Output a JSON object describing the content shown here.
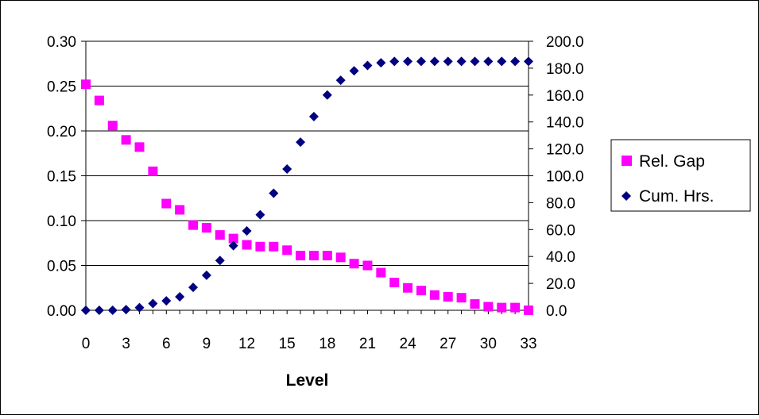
{
  "chart_data": {
    "type": "scatter",
    "xlabel": "Level",
    "x_ticks": [
      0,
      3,
      6,
      9,
      12,
      15,
      18,
      21,
      24,
      27,
      30,
      33
    ],
    "xlim": [
      0,
      33
    ],
    "y_left": {
      "lim": [
        0,
        0.3
      ],
      "ticks": [
        "0.00",
        "0.05",
        "0.10",
        "0.15",
        "0.20",
        "0.25",
        "0.30"
      ]
    },
    "y_right": {
      "lim": [
        0,
        200
      ],
      "ticks": [
        "0.0",
        "20.0",
        "40.0",
        "60.0",
        "80.0",
        "100.0",
        "120.0",
        "140.0",
        "160.0",
        "180.0",
        "200.0"
      ]
    },
    "grid": "horizontal",
    "legend_position": "right",
    "series": [
      {
        "name": "Rel. Gap",
        "axis": "left",
        "marker": "square",
        "color": "#ff00ff",
        "x": [
          0,
          1,
          2,
          3,
          4,
          5,
          6,
          7,
          8,
          9,
          10,
          11,
          12,
          13,
          14,
          15,
          16,
          17,
          18,
          19,
          20,
          21,
          22,
          23,
          24,
          25,
          26,
          27,
          28,
          29,
          30,
          31,
          32,
          33
        ],
        "values": [
          0.252,
          0.234,
          0.206,
          0.19,
          0.182,
          0.155,
          0.119,
          0.112,
          0.095,
          0.092,
          0.084,
          0.08,
          0.073,
          0.071,
          0.071,
          0.067,
          0.061,
          0.061,
          0.061,
          0.059,
          0.052,
          0.05,
          0.042,
          0.031,
          0.025,
          0.022,
          0.017,
          0.015,
          0.014,
          0.007,
          0.004,
          0.003,
          0.003,
          0.0
        ]
      },
      {
        "name": "Cum. Hrs.",
        "axis": "right",
        "marker": "diamond",
        "color": "#000080",
        "x": [
          0,
          1,
          2,
          3,
          4,
          5,
          6,
          7,
          8,
          9,
          10,
          11,
          12,
          13,
          14,
          15,
          16,
          17,
          18,
          19,
          20,
          21,
          22,
          23,
          24,
          25,
          26,
          27,
          28,
          29,
          30,
          31,
          32,
          33
        ],
        "values": [
          0,
          0,
          0,
          0.5,
          2,
          5,
          7,
          10,
          17,
          26,
          37,
          48,
          59,
          71,
          87,
          105,
          125,
          144,
          160,
          171,
          178,
          182,
          184,
          185,
          185,
          185,
          185,
          185,
          185,
          185,
          185,
          185,
          185,
          185
        ]
      }
    ]
  }
}
